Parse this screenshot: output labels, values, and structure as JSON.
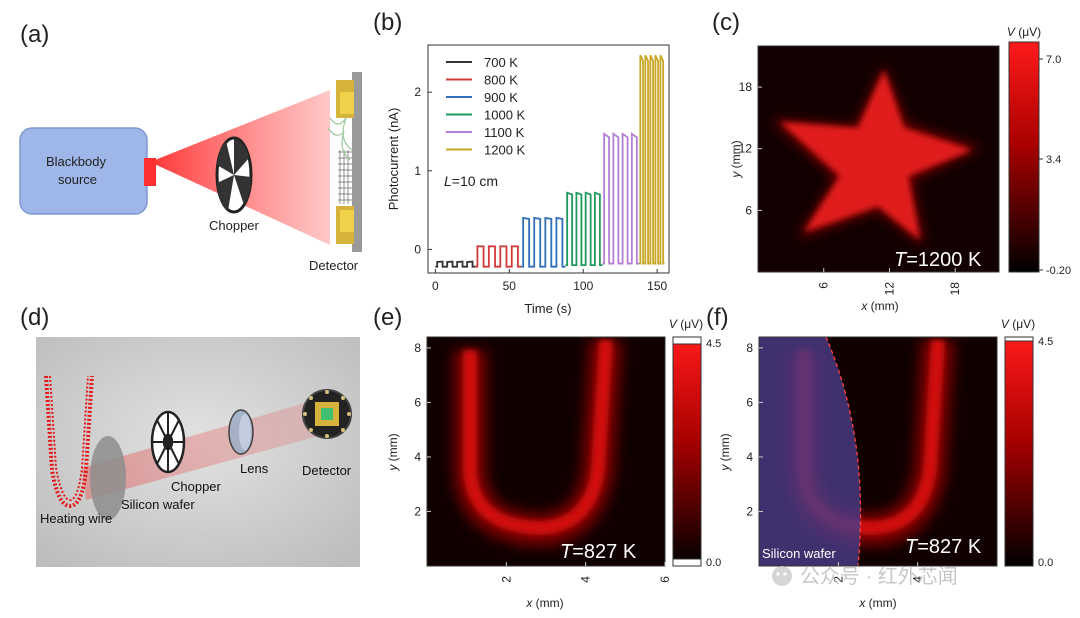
{
  "panels": {
    "a": {
      "label": "(a)",
      "source_line1": "Blackbody",
      "source_line2": "source",
      "chopper": "Chopper",
      "detector": "Detector"
    },
    "b": {
      "label": "(b)"
    },
    "c": {
      "label": "(c)",
      "temp_italic": "T",
      "temp_value": "=1200 K",
      "cb_title": "V (μV)",
      "cb_ticks": [
        "7.0",
        "3.4",
        "-0.20"
      ]
    },
    "d": {
      "label": "(d)",
      "heating_wire": "Heating wire",
      "silicon_wafer": "Silicon wafer",
      "chopper": "Chopper",
      "lens": "Lens",
      "detector": "Detector"
    },
    "e": {
      "label": "(e)",
      "temp_italic": "T",
      "temp_value": "=827 K",
      "cb_title": "V (μV)",
      "cb_ticks": [
        "4.5",
        "0.0"
      ]
    },
    "f": {
      "label": "(f)",
      "temp_italic": "T",
      "temp_value": "=827 K",
      "wafer_label": "Silicon wafer",
      "cb_title": "V (μV)",
      "cb_ticks": [
        "4.5",
        "0.0"
      ]
    }
  },
  "watermark": "公众号 · 红外芯闻",
  "chart_data": [
    {
      "panel": "b",
      "type": "line",
      "xlabel": "Time (s)",
      "ylabel": "Photocurrent (nA)",
      "xlim": [
        -5,
        158
      ],
      "ylim": [
        -0.3,
        2.6
      ],
      "xticks": [
        0,
        50,
        100,
        150
      ],
      "yticks": [
        0,
        1,
        2
      ],
      "annotation": "L=10 cm",
      "legend_position": "top-left",
      "series": [
        {
          "name": "700 K",
          "color": "#333333",
          "t_start": 0,
          "t_end": 27,
          "low": -0.22,
          "high": -0.16,
          "pulses": 4
        },
        {
          "name": "800 K",
          "color": "#d23a3a",
          "t_start": 27,
          "t_end": 58,
          "low": -0.22,
          "high": 0.04,
          "pulses": 4
        },
        {
          "name": "900 K",
          "color": "#2f6fb8",
          "t_start": 58,
          "t_end": 88,
          "low": -0.22,
          "high": 0.4,
          "pulses": 4
        },
        {
          "name": "1000 K",
          "color": "#1f9a5c",
          "t_start": 88,
          "t_end": 113,
          "low": -0.2,
          "high": 0.72,
          "pulses": 4
        },
        {
          "name": "1100 K",
          "color": "#b47fd2",
          "t_start": 113,
          "t_end": 138,
          "low": -0.18,
          "high": 1.47,
          "pulses": 4
        },
        {
          "name": "1200 K",
          "color": "#c9a726",
          "t_start": 138,
          "t_end": 155,
          "low": -0.18,
          "high": 2.47,
          "pulses": 5
        }
      ]
    },
    {
      "panel": "c",
      "type": "heatmap",
      "xlabel": "x (mm)",
      "ylabel": "y (mm)",
      "xlim": [
        0,
        22
      ],
      "ylim": [
        0,
        22
      ],
      "xticks": [
        6,
        12,
        18
      ],
      "yticks": [
        6,
        12,
        18
      ],
      "colorbar": {
        "min": -0.2,
        "max": 7.0
      }
    },
    {
      "panel": "e",
      "type": "heatmap",
      "xlabel": "x (mm)",
      "ylabel": "y (mm)",
      "xlim": [
        0,
        6
      ],
      "ylim": [
        0,
        8.4
      ],
      "xticks": [
        2,
        4,
        6
      ],
      "yticks": [
        2,
        4,
        6,
        8
      ],
      "colorbar": {
        "min": 0.0,
        "max": 4.5
      }
    },
    {
      "panel": "f",
      "type": "heatmap",
      "xlabel": "x (mm)",
      "ylabel": "y (mm)",
      "xlim": [
        0,
        6
      ],
      "ylim": [
        0,
        8.4
      ],
      "xticks": [
        2,
        4
      ],
      "yticks": [
        2,
        4,
        6,
        8
      ],
      "colorbar": {
        "min": 0.0,
        "max": 4.5
      }
    }
  ]
}
